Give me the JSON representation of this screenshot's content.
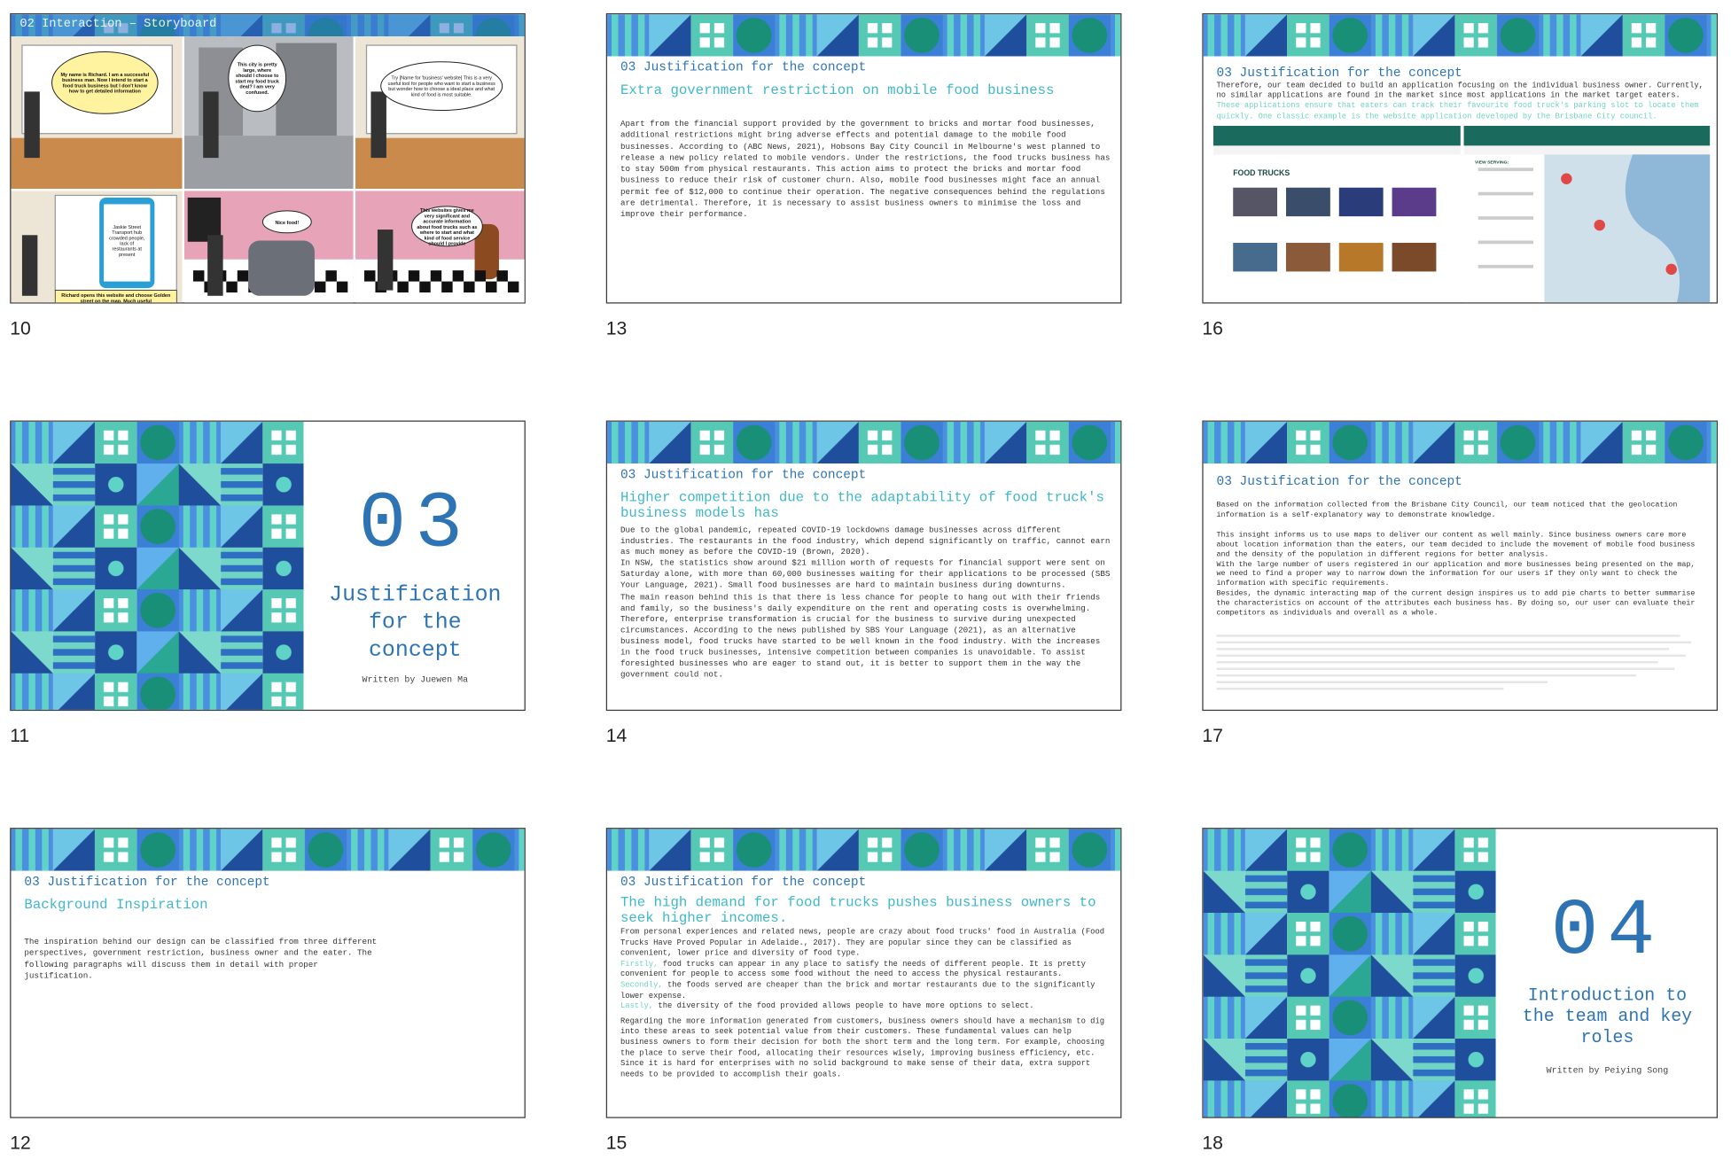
{
  "slides": [
    {
      "number": "10",
      "title": "02 Interaction – Storyboard",
      "bubbles": [
        "My name is Richard. I am a successful business man. Now I intend to start a food truck business but I don't know how to get detailed information",
        "This city is pretty large, where should I choose to start my food truck deal? I am very confused.",
        "Try [Name for 'business' website] This is a very useful tool for people who want to start a business but wonder how to choose a ideal place and what kind of food is most suitable.",
        "Jaskie Street Transport hub crowded people, lack of restaurants at present",
        "Nice food!",
        "This websites gives me very significant and accurate information about food trucks such as where to start and what kind of food service should I provide"
      ],
      "caption": "Richard opens this website and choose Golden street on the map. Much useful"
    },
    {
      "number": "11",
      "big": "03",
      "title": "Justification for the concept",
      "author": "Written by Juewen Ma"
    },
    {
      "number": "12",
      "section": "03 Justification for the concept",
      "heading": "Background Inspiration",
      "paragraphs": [
        "The inspiration behind our design can be classified from three different perspectives, government restriction, business owner and the eater. The following paragraphs will discuss them in detail with proper justification."
      ]
    },
    {
      "number": "13",
      "section": "03 Justification for the concept",
      "heading": "Extra government restriction on mobile food business",
      "paragraphs": [
        "Apart from the financial support provided by the government to bricks and mortar food businesses, additional restrictions might bring adverse effects and potential damage to the mobile food businesses. According to (ABC News, 2021), Hobsons Bay City Council in Melbourne's west planned to release a new policy related to mobile vendors. Under the restrictions, the food trucks business has to stay 500m from physical restaurants. This action aims to protect the bricks and mortar food business to reduce their risk of customer churn. Also, mobile food businesses might face an annual permit fee of $12,000 to continue their operation. The negative consequences behind the regulations are detrimental. Therefore, it is necessary to assist business owners to minimise the loss and improve their performance."
      ]
    },
    {
      "number": "14",
      "section": "03 Justification for the concept",
      "heading": "Higher competition due to the adaptability of food truck's business models has",
      "paragraphs": [
        "Due to the global pandemic, repeated COVID-19 lockdowns damage businesses across different industries. The restaurants in the food industry, which depend significantly on traffic, cannot earn as much money as before the COVID-19 (Brown, 2020).",
        "In NSW, the statistics show around $21 million worth of requests for financial support were sent on Saturday alone, with more than 60,000 businesses waiting for their applications to be processed (SBS Your Language, 2021). Small food businesses are hard to maintain business during downturns.",
        "The main reason behind this is that there is less chance for people to hang out with their friends and family, so the business's daily expenditure on the rent and operating costs is overwhelming. Therefore, enterprise transformation is crucial for the business to survive during unexpected circumstances. According to the news published by SBS Your Language (2021), as an alternative business model, food trucks have started to be well known in the food industry. With the increases in the food truck businesses, intensive competition between companies is unavoidable. To assist foresighted businesses who are eager to stand out, it is better to support them in the way the government could not."
      ]
    },
    {
      "number": "15",
      "section": "03 Justification for the concept",
      "heading": "The high demand for food trucks pushes business owners to seek higher incomes.",
      "intro": "From personal experiences and related news, people are crazy about food trucks' food in Australia (Food Trucks Have Proved Popular in Adelaide., 2017). They are popular since they can be classified as convenient, lower price and diversity of food type.",
      "points": [
        {
          "lead": "Firstly,",
          "text": "food trucks can appear in any place to satisfy the needs of different people. It is pretty convenient for people to access some food without the need to access the physical restaurants."
        },
        {
          "lead": "Secondly,",
          "text": "the foods served are cheaper than the brick and mortar restaurants due to the significantly lower expense."
        },
        {
          "lead": "Lastly,",
          "text": "the diversity of the food provided allows people to have more options to select."
        }
      ],
      "closing": "Regarding the more information generated from customers, business owners should have a mechanism to dig into these areas to seek potential value from their customers. These fundamental values can help business owners to form their decision for both the short term and the long term. For example, choosing the place to serve their food, allocating their resources wisely, improving business efficiency, etc. Since it is hard for enterprises with no solid background to make sense of their data, extra support needs to be provided to accomplish their goals."
    },
    {
      "number": "16",
      "section": "03 Justification for the concept",
      "text": "Therefore, our team decided to build an application focusing on the individual business owner. Currently, no similar applications are found in the market since most applications in the market target eaters.",
      "highlight": "These applications ensure that eaters can track their favourite food truck's parking slot to locate them quickly. One classic example is the website application developed by the Brisbane City council.",
      "screen_title": "FOOD TRUCKS",
      "screen_tab": "VIEW SERVING:"
    },
    {
      "number": "17",
      "section": "03 Justification for the concept",
      "paragraphs": [
        "Based on the information collected from the Brisbane City Council, our team noticed that the geolocation information is a self-explanatory way to demonstrate knowledge.",
        "This insight informs us to use maps to deliver our content as well mainly. Since business owners care more about location information than the eaters, our team decided to include the movement of mobile food business and the density of the population in different regions for better analysis.",
        "With the large number of users registered in our application and more businesses being presented on the map, we need to find a proper way to narrow down the information for our users if they only want to check the information with specific requirements.",
        "Besides, the dynamic interacting map of the current design inspires us to add pie charts to better summarise the characteristics on account of the attributes each business has. By doing so, our user can evaluate their competitors as individuals and overall as a whole."
      ]
    },
    {
      "number": "18",
      "big": "04",
      "title": "Introduction to the team and key roles",
      "author": "Written by Peiying Song"
    }
  ]
}
